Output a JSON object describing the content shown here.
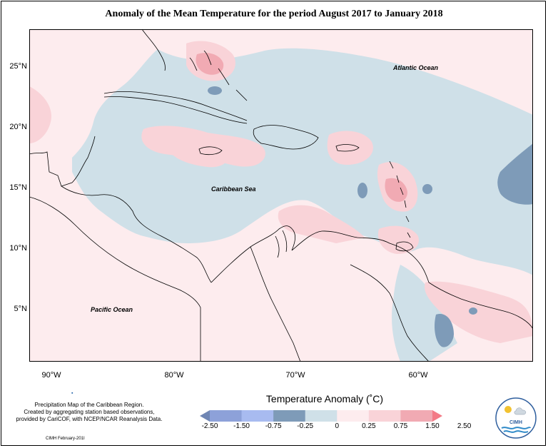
{
  "title": "Anomaly of the Mean Temperature for the period August 2017 to January 2018",
  "map": {
    "labels": {
      "atlantic": "Atlantic Ocean",
      "caribbean": "Caribbean Sea",
      "pacific": "Pacific Ocean"
    },
    "x_ticks": [
      "90°W",
      "80°W",
      "70°W",
      "60°W"
    ],
    "y_ticks": [
      "25°N",
      "20°N",
      "15°N",
      "10°N",
      "5°N"
    ],
    "colors": {
      "anomaly_neg_025_0": "#cfe0e8",
      "anomaly_0_025": "#fdecee",
      "anomaly_025_075": "#f9d3d8",
      "anomaly_075_150": "#f1aab3",
      "anomaly_neg_075_neg_025": "#7e9bb8",
      "land_outline": "#000000"
    }
  },
  "legend": {
    "title": "Temperature Anomaly (˚C)",
    "labels": [
      "-2.50",
      "-1.50",
      "-0.75",
      "-0.25",
      "0",
      "0.25",
      "0.75",
      "1.50",
      "2.50"
    ],
    "colors": [
      "#6f86b4",
      "#8da1d9",
      "#a8bbf0",
      "#7e9bb8",
      "#cfe0e8",
      "#fdecee",
      "#f9d3d8",
      "#f1aab3",
      "#f37a86"
    ]
  },
  "footnote": {
    "line1": "Precipitation Map of the Caribbean Region.",
    "line2": "Created by aggregating station based observations,",
    "line3": "provided by CariCOF, with NCEP/NCAR Reanalysis Data."
  },
  "credit": "CIMH February-201I",
  "logo": {
    "text": "CIMH"
  }
}
